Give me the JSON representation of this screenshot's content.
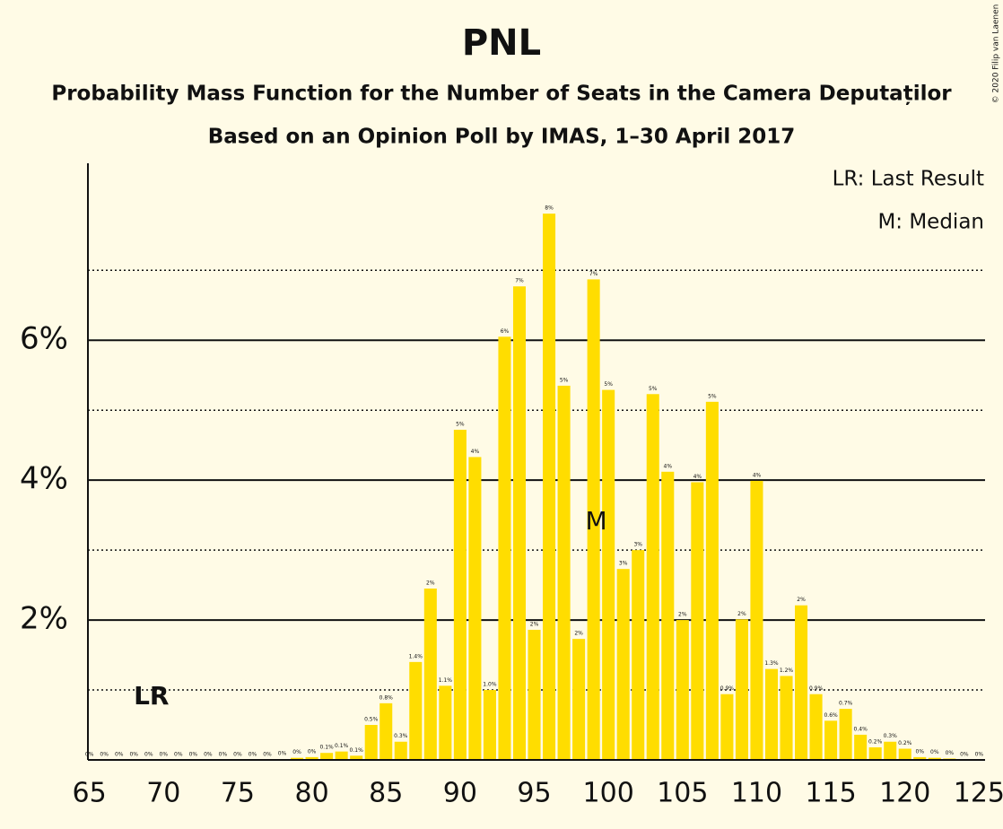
{
  "chart_data": {
    "type": "bar",
    "title": "PNL",
    "subtitle": "Probability Mass Function for the Number of Seats in the Camera Deputaților",
    "subtitle2": "Based on an Opinion Poll by IMAS, 1–30 April 2017",
    "copyright": "© 2020 Filip van Laenen",
    "color": "#ffdd00",
    "x": [
      65,
      66,
      67,
      68,
      69,
      70,
      71,
      72,
      73,
      74,
      75,
      76,
      77,
      78,
      79,
      80,
      81,
      82,
      83,
      84,
      85,
      86,
      87,
      88,
      89,
      90,
      91,
      92,
      93,
      94,
      95,
      96,
      97,
      98,
      99,
      100,
      101,
      102,
      103,
      104,
      105,
      106,
      107,
      108,
      109,
      110,
      111,
      112,
      113,
      114,
      115,
      116,
      117,
      118,
      119,
      120,
      121,
      122,
      123,
      124,
      125
    ],
    "values": [
      0,
      0,
      0,
      0,
      0,
      0,
      0,
      0,
      0,
      0,
      0,
      0,
      0,
      0.01,
      0.03,
      0.04,
      0.1,
      0.12,
      0.06,
      0.5,
      0.81,
      0.26,
      1.4,
      2.45,
      1.06,
      4.72,
      4.33,
      1.0,
      6.05,
      6.77,
      1.86,
      7.81,
      5.35,
      1.73,
      6.87,
      5.29,
      2.73,
      3.0,
      5.23,
      4.12,
      2.0,
      3.97,
      5.12,
      0.94,
      2.01,
      3.99,
      1.3,
      1.2,
      2.21,
      0.94,
      0.56,
      0.73,
      0.36,
      0.18,
      0.26,
      0.16,
      0.04,
      0.03,
      0.02,
      0,
      0
    ],
    "value_labels": [
      "0%",
      "0%",
      "0%",
      "0%",
      "0%",
      "0%",
      "0%",
      "0%",
      "0%",
      "0%",
      "0%",
      "0%",
      "0%",
      "0%",
      "0%",
      "0%",
      "0.1%",
      "0.1%",
      "0.1%",
      "0.5%",
      "0.8%",
      "0.3%",
      "1.4%",
      "2%",
      "1.1%",
      "5%",
      "4%",
      "1.0%",
      "6%",
      "7%",
      "2%",
      "8%",
      "5%",
      "2%",
      "7%",
      "5%",
      "3%",
      "3%",
      "5%",
      "4%",
      "2%",
      "4%",
      "5%",
      "0.9%",
      "2%",
      "4%",
      "1.3%",
      "1.2%",
      "2%",
      "0.9%",
      "0.6%",
      "0.7%",
      "0.4%",
      "0.2%",
      "0.3%",
      "0.2%",
      "0%",
      "0%",
      "0%",
      "0%",
      "0%"
    ],
    "xlim": [
      64.9,
      125.4
    ],
    "xticks": [
      65,
      70,
      75,
      80,
      85,
      90,
      95,
      100,
      105,
      110,
      115,
      120,
      125
    ],
    "ylim": [
      0,
      8.53
    ],
    "yticks": [
      {
        "value": 2,
        "label": "2%"
      },
      {
        "value": 4,
        "label": "4%"
      },
      {
        "value": 6,
        "label": "6%"
      }
    ],
    "minor_yticks": [
      1,
      3,
      5,
      7
    ],
    "grid": true,
    "annotations": [
      {
        "text": "LR",
        "x": 69,
        "y": 0.9
      },
      {
        "text": "M",
        "x": 99,
        "y": 3.4
      }
    ],
    "legend": [
      "LR: Last Result",
      "M: Median"
    ]
  }
}
